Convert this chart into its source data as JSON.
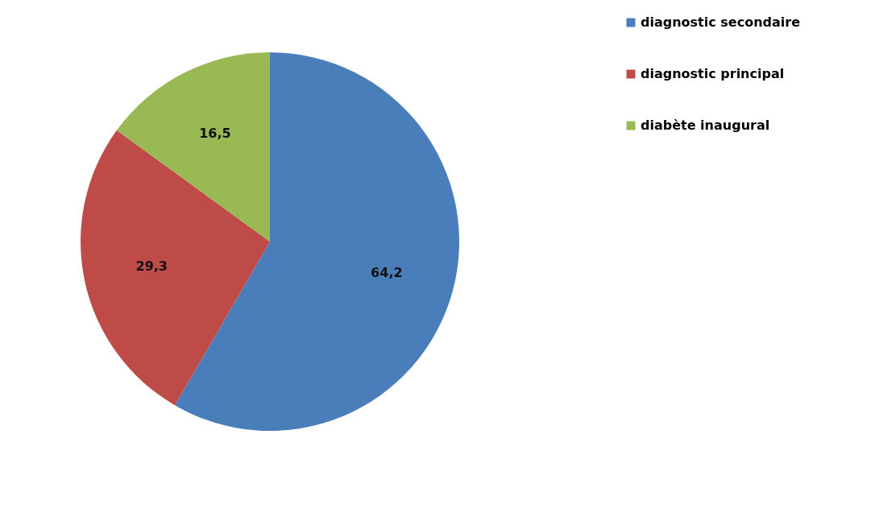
{
  "chart_data": {
    "type": "pie",
    "categories": [
      "diagnostic secondaire",
      "diagnostic principal",
      "diabète inaugural"
    ],
    "values": [
      64.2,
      29.3,
      16.5
    ],
    "value_labels": [
      "64,2",
      "29,3",
      "16,5"
    ],
    "colors": [
      "#4a7ebb",
      "#be4b48",
      "#98b954"
    ],
    "legend": "right"
  }
}
